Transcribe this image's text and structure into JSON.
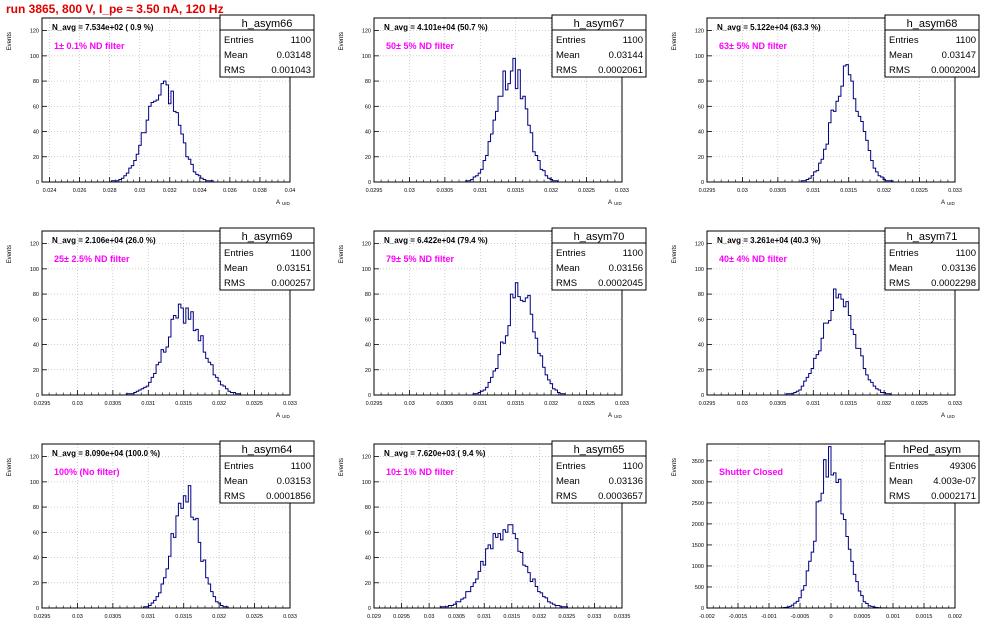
{
  "run_title": "run 3865,   800 V, I_pe ≈ 3.50 nA, 120 Hz",
  "ylabel": "Events",
  "xlabel": "A",
  "xlabel_sub": "UID",
  "colors": {
    "histogram": "#000080",
    "filter_note": "#ff00ff",
    "title": "#e00000"
  },
  "chart_data": [
    {
      "type": "histogram",
      "name": "h_asym66",
      "navg": "N_avg = 7.534e+02 ( 0.9 %)",
      "filter": "1± 0.1% ND filter",
      "stats": [
        {
          "label": "Entries",
          "value": "1100"
        },
        {
          "label": "Mean",
          "value": "0.03148"
        },
        {
          "label": "RMS",
          "value": "0.001043"
        }
      ],
      "xlim": [
        0.0235,
        0.04
      ],
      "ylim": [
        0,
        130
      ],
      "xticks": [
        0.024,
        0.026,
        0.028,
        0.03,
        0.032,
        0.034,
        0.036,
        0.038,
        0.04
      ],
      "xticklabels": [
        "0.024",
        "0.026",
        "0.028",
        "0.03",
        "0.032",
        "0.034",
        "0.036",
        "0.038",
        "0.04"
      ],
      "yticks": [
        0,
        20,
        40,
        60,
        80,
        100,
        120
      ],
      "peak": {
        "mean": 0.03148,
        "rms": 0.001043,
        "max": 78
      }
    },
    {
      "type": "histogram",
      "name": "h_asym67",
      "navg": "N_avg = 4.101e+04 (50.7 %)",
      "filter": "50± 5% ND filter",
      "stats": [
        {
          "label": "Entries",
          "value": "1100"
        },
        {
          "label": "Mean",
          "value": "0.03144"
        },
        {
          "label": "RMS",
          "value": "0.0002061"
        }
      ],
      "xlim": [
        0.0295,
        0.033
      ],
      "ylim": [
        0,
        130
      ],
      "xticks": [
        0.0295,
        0.03,
        0.0305,
        0.031,
        0.0315,
        0.032,
        0.0325,
        0.033
      ],
      "xticklabels": [
        "0.0295",
        "0.03",
        "0.0305",
        "0.031",
        "0.0315",
        "0.032",
        "0.0325",
        "0.033"
      ],
      "yticks": [
        0,
        20,
        40,
        60,
        80,
        100,
        120
      ],
      "peak": {
        "mean": 0.03144,
        "rms": 0.0002061,
        "max": 90
      }
    },
    {
      "type": "histogram",
      "name": "h_asym68",
      "navg": "N_avg = 5.122e+04 (63.3 %)",
      "filter": "63± 5% ND filter",
      "stats": [
        {
          "label": "Entries",
          "value": "1100"
        },
        {
          "label": "Mean",
          "value": "0.03147"
        },
        {
          "label": "RMS",
          "value": "0.0002004"
        }
      ],
      "xlim": [
        0.0295,
        0.033
      ],
      "ylim": [
        0,
        130
      ],
      "xticks": [
        0.0295,
        0.03,
        0.0305,
        0.031,
        0.0315,
        0.032,
        0.0325,
        0.033
      ],
      "xticklabels": [
        "0.0295",
        "0.03",
        "0.0305",
        "0.031",
        "0.0315",
        "0.032",
        "0.0325",
        "0.033"
      ],
      "yticks": [
        0,
        20,
        40,
        60,
        80,
        100,
        120
      ],
      "peak": {
        "mean": 0.03147,
        "rms": 0.0002004,
        "max": 83
      }
    },
    {
      "type": "histogram",
      "name": "h_asym69",
      "navg": "N_avg = 2.106e+04 (26.0 %)",
      "filter": "25± 2.5% ND filter",
      "stats": [
        {
          "label": "Entries",
          "value": "1100"
        },
        {
          "label": "Mean",
          "value": "0.03151"
        },
        {
          "label": "RMS",
          "value": "0.000257"
        }
      ],
      "xlim": [
        0.0295,
        0.033
      ],
      "ylim": [
        0,
        130
      ],
      "xticks": [
        0.0295,
        0.03,
        0.0305,
        0.031,
        0.0315,
        0.032,
        0.0325,
        0.033
      ],
      "xticklabels": [
        "0.0295",
        "0.03",
        "0.0305",
        "0.031",
        "0.0315",
        "0.032",
        "0.0325",
        "0.033"
      ],
      "yticks": [
        0,
        20,
        40,
        60,
        80,
        100,
        120
      ],
      "peak": {
        "mean": 0.03151,
        "rms": 0.000257,
        "max": 66
      }
    },
    {
      "type": "histogram",
      "name": "h_asym70",
      "navg": "N_avg = 6.422e+04 (79.4 %)",
      "filter": "79± 5% ND filter",
      "stats": [
        {
          "label": "Entries",
          "value": "1100"
        },
        {
          "label": "Mean",
          "value": "0.03156"
        },
        {
          "label": "RMS",
          "value": "0.0002045"
        }
      ],
      "xlim": [
        0.0295,
        0.033
      ],
      "ylim": [
        0,
        130
      ],
      "xticks": [
        0.0295,
        0.03,
        0.0305,
        0.031,
        0.0315,
        0.032,
        0.0325,
        0.033
      ],
      "xticklabels": [
        "0.0295",
        "0.03",
        "0.0305",
        "0.031",
        "0.0315",
        "0.032",
        "0.0325",
        "0.033"
      ],
      "yticks": [
        0,
        20,
        40,
        60,
        80,
        100,
        120
      ],
      "peak": {
        "mean": 0.03156,
        "rms": 0.0002045,
        "max": 84
      }
    },
    {
      "type": "histogram",
      "name": "h_asym71",
      "navg": "N_avg = 3.261e+04 (40.3 %)",
      "filter": "40± 4% ND filter",
      "stats": [
        {
          "label": "Entries",
          "value": "1100"
        },
        {
          "label": "Mean",
          "value": "0.03136"
        },
        {
          "label": "RMS",
          "value": "0.0002298"
        }
      ],
      "xlim": [
        0.0295,
        0.033
      ],
      "ylim": [
        0,
        130
      ],
      "xticks": [
        0.0295,
        0.03,
        0.0305,
        0.031,
        0.0315,
        0.032,
        0.0325,
        0.033
      ],
      "xticklabels": [
        "0.0295",
        "0.03",
        "0.0305",
        "0.031",
        "0.0315",
        "0.032",
        "0.0325",
        "0.033"
      ],
      "yticks": [
        0,
        20,
        40,
        60,
        80,
        100,
        120
      ],
      "peak": {
        "mean": 0.03136,
        "rms": 0.0002298,
        "max": 80
      }
    },
    {
      "type": "histogram",
      "name": "h_asym64",
      "navg": "N_avg = 8.090e+04 (100.0 %)",
      "filter": "100% (No filter)",
      "stats": [
        {
          "label": "Entries",
          "value": "1100"
        },
        {
          "label": "Mean",
          "value": "0.03153"
        },
        {
          "label": "RMS",
          "value": "0.0001856"
        }
      ],
      "xlim": [
        0.0295,
        0.033
      ],
      "ylim": [
        0,
        130
      ],
      "xticks": [
        0.0295,
        0.03,
        0.0305,
        0.031,
        0.0315,
        0.032,
        0.0325,
        0.033
      ],
      "xticklabels": [
        "0.0295",
        "0.03",
        "0.0305",
        "0.031",
        "0.0315",
        "0.032",
        "0.0325",
        "0.033"
      ],
      "yticks": [
        0,
        20,
        40,
        60,
        80,
        100,
        120
      ],
      "peak": {
        "mean": 0.03153,
        "rms": 0.0001856,
        "max": 90
      }
    },
    {
      "type": "histogram",
      "name": "h_asym65",
      "navg": "N_avg = 7.620e+03 ( 9.4 %)",
      "filter": "10± 1% ND filter",
      "stats": [
        {
          "label": "Entries",
          "value": "1100"
        },
        {
          "label": "Mean",
          "value": "0.03136"
        },
        {
          "label": "RMS",
          "value": "0.0003657"
        }
      ],
      "xlim": [
        0.029,
        0.0335
      ],
      "ylim": [
        0,
        130
      ],
      "xticks": [
        0.029,
        0.0295,
        0.03,
        0.0305,
        0.031,
        0.0315,
        0.032,
        0.0325,
        0.033,
        0.0335
      ],
      "xticklabels": [
        "0.029",
        "0.0295",
        "0.03",
        "0.0305",
        "0.031",
        "0.0315",
        "0.032",
        "0.0325",
        "0.033",
        "0.0335"
      ],
      "yticks": [
        0,
        20,
        40,
        60,
        80,
        100,
        120
      ],
      "peak": {
        "mean": 0.03136,
        "rms": 0.0003657,
        "max": 62
      }
    },
    {
      "type": "histogram",
      "name": "hPed_asym",
      "navg": "",
      "filter": "Shutter Closed",
      "stats": [
        {
          "label": "Entries",
          "value": "49306"
        },
        {
          "label": "Mean",
          "value": "4.003e-07"
        },
        {
          "label": "RMS",
          "value": "0.0002171"
        }
      ],
      "xlim": [
        -0.002,
        0.002
      ],
      "ylim": [
        0,
        3900
      ],
      "xticks": [
        -0.002,
        -0.0015,
        -0.001,
        -0.0005,
        0,
        0.0005,
        0.001,
        0.0015,
        0.002
      ],
      "xticklabels": [
        "-0.002",
        "-0.0015",
        "-0.001",
        "-0.0005",
        "0",
        "0.0005",
        "0.001",
        "0.0015",
        "0.002"
      ],
      "yticks": [
        0,
        500,
        1000,
        1500,
        2000,
        2500,
        3000,
        3500
      ],
      "peak": {
        "mean": 4e-07,
        "rms": 0.0002171,
        "max": 3700
      }
    }
  ]
}
